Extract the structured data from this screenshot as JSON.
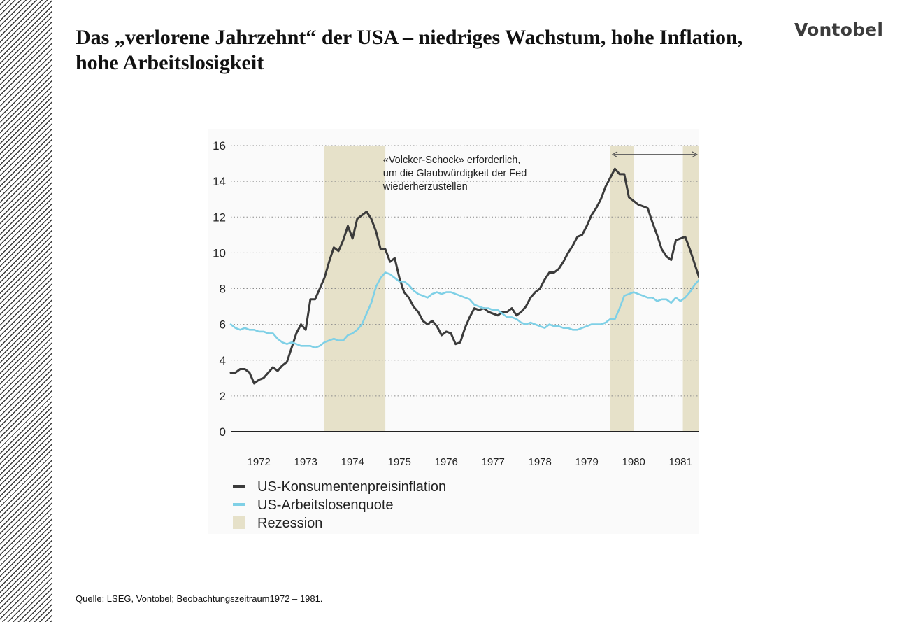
{
  "page": {
    "title": "Das „verlorene Jahrzehnt“ der USA – niedriges Wachstum, hohe Inflation, hohe Arbeitslosigkeit",
    "logo_text": "Vontobel",
    "source": "Quelle: LSEG, Vontobel; Beobachtungszeitraum1972 – 1981."
  },
  "colors": {
    "inflation": "#3b3b3b",
    "unemployment": "#7fd0e6",
    "recession": "#e6e1c9",
    "grid": "#8a8a8a",
    "axis": "#222222"
  },
  "chart_data": {
    "type": "line",
    "title": "",
    "xlabel": "",
    "ylabel": "",
    "ylim": [
      0,
      16
    ],
    "xlim": [
      1971.9,
      1981.9
    ],
    "yticks": [
      "0",
      "2",
      "4",
      "6",
      "8",
      "10",
      "12",
      "14",
      "16"
    ],
    "xticks": [
      "1972",
      "1973",
      "1974",
      "1975",
      "1976",
      "1977",
      "1978",
      "1979",
      "1980",
      "1981"
    ],
    "grid": "horizontal dotted",
    "legend_position": "bottom-left",
    "legend": [
      {
        "label": "US-Konsumentenpreisinflation",
        "color_key": "inflation",
        "kind": "line"
      },
      {
        "label": "US-Arbeitslosenquote",
        "color_key": "unemployment",
        "kind": "line"
      },
      {
        "label": "Rezession",
        "color_key": "recession",
        "kind": "box"
      }
    ],
    "recessions": [
      {
        "start": 1973.9,
        "end": 1975.2
      },
      {
        "start": 1980.0,
        "end": 1980.5
      },
      {
        "start": 1981.55,
        "end": 1981.9
      }
    ],
    "annotation": {
      "lines": [
        "«Volcker-Schock» erforderlich,",
        "um die Glaubwürdigkeit der Fed",
        "wiederherzustellen"
      ],
      "x": 1975.15,
      "y": 15.6,
      "arrow_from": 1980.05,
      "arrow_to": 1981.85,
      "arrow_y": 15.5
    },
    "series": [
      {
        "name": "US-Konsumentenpreisinflation",
        "color_key": "inflation",
        "x": [
          1971.9,
          1972.0,
          1972.1,
          1972.2,
          1972.3,
          1972.4,
          1972.5,
          1972.6,
          1972.7,
          1972.8,
          1972.9,
          1973.0,
          1973.1,
          1973.2,
          1973.3,
          1973.4,
          1973.5,
          1973.6,
          1973.7,
          1973.8,
          1973.9,
          1974.0,
          1974.1,
          1974.2,
          1974.3,
          1974.4,
          1974.5,
          1974.6,
          1974.7,
          1974.8,
          1974.9,
          1975.0,
          1975.1,
          1975.2,
          1975.3,
          1975.4,
          1975.5,
          1975.6,
          1975.7,
          1975.8,
          1975.9,
          1976.0,
          1976.1,
          1976.2,
          1976.3,
          1976.4,
          1976.5,
          1976.6,
          1976.7,
          1976.8,
          1976.9,
          1977.0,
          1977.1,
          1977.2,
          1977.3,
          1977.4,
          1977.5,
          1977.6,
          1977.7,
          1977.8,
          1977.9,
          1978.0,
          1978.1,
          1978.2,
          1978.3,
          1978.4,
          1978.5,
          1978.6,
          1978.7,
          1978.8,
          1978.9,
          1979.0,
          1979.1,
          1979.2,
          1979.3,
          1979.4,
          1979.5,
          1979.6,
          1979.7,
          1979.8,
          1979.9,
          1980.0,
          1980.1,
          1980.2,
          1980.3,
          1980.4,
          1980.5,
          1980.6,
          1980.7,
          1980.8,
          1980.9,
          1981.0,
          1981.1,
          1981.2,
          1981.3,
          1981.4,
          1981.5,
          1981.6,
          1981.7,
          1981.8,
          1981.9
        ],
        "values": [
          3.3,
          3.3,
          3.5,
          3.5,
          3.3,
          2.7,
          2.9,
          3.0,
          3.3,
          3.6,
          3.4,
          3.7,
          3.9,
          4.7,
          5.5,
          6.0,
          5.7,
          7.4,
          7.4,
          8.0,
          8.6,
          9.5,
          10.3,
          10.1,
          10.7,
          11.5,
          10.8,
          11.9,
          12.1,
          12.3,
          11.9,
          11.2,
          10.2,
          10.2,
          9.5,
          9.7,
          8.6,
          7.8,
          7.5,
          7.0,
          6.7,
          6.2,
          6.0,
          6.2,
          5.9,
          5.4,
          5.6,
          5.5,
          4.9,
          5.0,
          5.8,
          6.4,
          6.9,
          6.8,
          6.9,
          6.7,
          6.6,
          6.5,
          6.7,
          6.7,
          6.9,
          6.5,
          6.7,
          7.0,
          7.5,
          7.8,
          8.0,
          8.5,
          8.9,
          8.9,
          9.1,
          9.5,
          10.0,
          10.4,
          10.9,
          11.0,
          11.5,
          12.1,
          12.5,
          13.0,
          13.7,
          14.2,
          14.7,
          14.4,
          14.4,
          13.1,
          12.9,
          12.7,
          12.6,
          12.5,
          11.7,
          11.0,
          10.2,
          9.8,
          9.6,
          10.7,
          10.8,
          10.9,
          10.2,
          9.4,
          8.6
        ],
        "smooth": false
      },
      {
        "name": "US-Arbeitslosenquote",
        "color_key": "unemployment",
        "x": [
          1971.9,
          1972.0,
          1972.1,
          1972.2,
          1972.3,
          1972.4,
          1972.5,
          1972.6,
          1972.7,
          1972.8,
          1972.9,
          1973.0,
          1973.1,
          1973.2,
          1973.3,
          1973.4,
          1973.5,
          1973.6,
          1973.7,
          1973.8,
          1973.9,
          1974.0,
          1974.1,
          1974.2,
          1974.3,
          1974.4,
          1974.5,
          1974.6,
          1974.7,
          1974.8,
          1974.9,
          1975.0,
          1975.1,
          1975.2,
          1975.3,
          1975.4,
          1975.5,
          1975.6,
          1975.7,
          1975.8,
          1975.9,
          1976.0,
          1976.1,
          1976.2,
          1976.3,
          1976.4,
          1976.5,
          1976.6,
          1976.7,
          1976.8,
          1976.9,
          1977.0,
          1977.1,
          1977.2,
          1977.3,
          1977.4,
          1977.5,
          1977.6,
          1977.7,
          1977.8,
          1977.9,
          1978.0,
          1978.1,
          1978.2,
          1978.3,
          1978.4,
          1978.5,
          1978.6,
          1978.7,
          1978.8,
          1978.9,
          1979.0,
          1979.1,
          1979.2,
          1979.3,
          1979.4,
          1979.5,
          1979.6,
          1979.7,
          1979.8,
          1979.9,
          1980.0,
          1980.1,
          1980.2,
          1980.3,
          1980.4,
          1980.5,
          1980.6,
          1980.7,
          1980.8,
          1980.9,
          1981.0,
          1981.1,
          1981.2,
          1981.3,
          1981.4,
          1981.5,
          1981.6,
          1981.7,
          1981.8,
          1981.9
        ],
        "values": [
          6.0,
          5.8,
          5.7,
          5.8,
          5.7,
          5.7,
          5.6,
          5.6,
          5.5,
          5.5,
          5.2,
          5.0,
          4.9,
          5.0,
          4.9,
          4.8,
          4.8,
          4.8,
          4.7,
          4.8,
          5.0,
          5.1,
          5.2,
          5.1,
          5.1,
          5.4,
          5.5,
          5.7,
          6.0,
          6.6,
          7.2,
          8.1,
          8.6,
          8.9,
          8.8,
          8.6,
          8.4,
          8.4,
          8.2,
          7.9,
          7.7,
          7.6,
          7.5,
          7.7,
          7.8,
          7.7,
          7.8,
          7.8,
          7.7,
          7.6,
          7.5,
          7.4,
          7.1,
          7.0,
          6.9,
          6.9,
          6.8,
          6.8,
          6.6,
          6.4,
          6.4,
          6.3,
          6.1,
          6.0,
          6.1,
          6.0,
          5.9,
          5.8,
          6.0,
          5.9,
          5.9,
          5.8,
          5.8,
          5.7,
          5.7,
          5.8,
          5.9,
          6.0,
          6.0,
          6.0,
          6.1,
          6.3,
          6.3,
          6.9,
          7.6,
          7.7,
          7.8,
          7.7,
          7.6,
          7.5,
          7.5,
          7.3,
          7.4,
          7.4,
          7.2,
          7.5,
          7.3,
          7.5,
          7.8,
          8.2,
          8.5
        ],
        "smooth": false
      }
    ]
  }
}
